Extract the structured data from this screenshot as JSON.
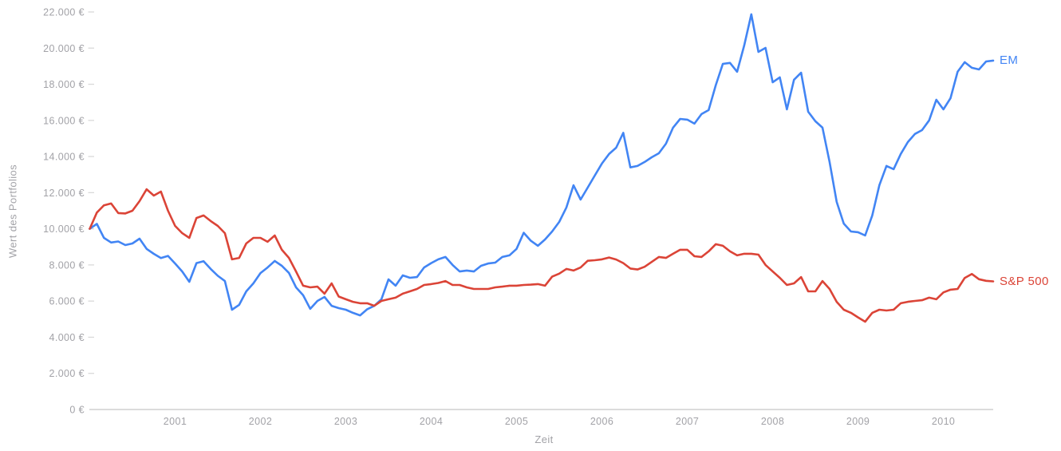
{
  "chart_data": {
    "type": "line",
    "title": "",
    "xlabel": "Zeit",
    "ylabel": "Wert des Portfolios",
    "x_start": "2000-01",
    "frequency": "monthly",
    "x_tick_years": [
      2001,
      2002,
      2003,
      2004,
      2005,
      2006,
      2007,
      2008,
      2009,
      2010
    ],
    "y_ticks": [
      0,
      2000,
      4000,
      6000,
      8000,
      10000,
      12000,
      14000,
      16000,
      18000,
      20000,
      22000
    ],
    "y_tick_suffix": " €",
    "ylim": [
      0,
      22000
    ],
    "grid": false,
    "legend_position": "line-end",
    "series": [
      {
        "name": "EM",
        "color": "#4285f4",
        "values": [
          10000,
          10270,
          9500,
          9240,
          9300,
          9100,
          9190,
          9455,
          8890,
          8615,
          8380,
          8500,
          8080,
          7640,
          7070,
          8100,
          8210,
          7780,
          7400,
          7110,
          5520,
          5790,
          6540,
          6980,
          7550,
          7860,
          8220,
          7950,
          7560,
          6760,
          6320,
          5570,
          6010,
          6230,
          5740,
          5610,
          5520,
          5350,
          5210,
          5550,
          5740,
          6100,
          7200,
          6850,
          7420,
          7290,
          7330,
          7860,
          8100,
          8310,
          8440,
          8000,
          7640,
          7690,
          7640,
          7950,
          8080,
          8130,
          8440,
          8530,
          8890,
          9780,
          9340,
          9060,
          9410,
          9850,
          10380,
          11180,
          12410,
          11620,
          12280,
          12950,
          13610,
          14140,
          14490,
          15310,
          13400,
          13480,
          13700,
          13960,
          14180,
          14710,
          15600,
          16080,
          16040,
          15820,
          16350,
          16570,
          17940,
          19130,
          19180,
          18690,
          20150,
          21870,
          19790,
          20010,
          18110,
          18380,
          16610,
          18250,
          18640,
          16480,
          15950,
          15600,
          13700,
          11490,
          10290,
          9850,
          9810,
          9630,
          10740,
          12410,
          13480,
          13300,
          14140,
          14800,
          15250,
          15460,
          16000,
          17140,
          16610,
          17230,
          18690,
          19220,
          18910,
          18820,
          19260,
          19310
        ]
      },
      {
        "name": "S&P 500",
        "color": "#db4437",
        "values": [
          10000,
          10900,
          11300,
          11400,
          10870,
          10850,
          11000,
          11530,
          12190,
          11840,
          12060,
          11000,
          10160,
          9760,
          9500,
          10600,
          10740,
          10430,
          10160,
          9760,
          8310,
          8390,
          9190,
          9500,
          9500,
          9280,
          9630,
          8840,
          8390,
          7640,
          6850,
          6760,
          6800,
          6410,
          6980,
          6250,
          6100,
          5960,
          5880,
          5880,
          5740,
          6010,
          6100,
          6190,
          6410,
          6540,
          6670,
          6890,
          6940,
          7000,
          7110,
          6890,
          6890,
          6760,
          6670,
          6670,
          6670,
          6760,
          6800,
          6850,
          6850,
          6890,
          6910,
          6940,
          6850,
          7350,
          7520,
          7780,
          7690,
          7860,
          8230,
          8260,
          8310,
          8410,
          8300,
          8100,
          7800,
          7750,
          7900,
          8170,
          8440,
          8390,
          8620,
          8840,
          8840,
          8480,
          8440,
          8750,
          9150,
          9060,
          8750,
          8530,
          8620,
          8620,
          8570,
          8000,
          7640,
          7290,
          6890,
          6980,
          7330,
          6540,
          6540,
          7110,
          6670,
          5960,
          5520,
          5350,
          5100,
          4860,
          5350,
          5520,
          5480,
          5520,
          5880,
          5960,
          6010,
          6050,
          6190,
          6100,
          6480,
          6630,
          6670,
          7280,
          7500,
          7210,
          7120,
          7090
        ]
      }
    ]
  },
  "styles": {
    "axis_line_color": "#dcdcdc",
    "tick_mark_color": "#d9d9d9",
    "label_color": "#a2a2a7",
    "background": "#ffffff"
  }
}
